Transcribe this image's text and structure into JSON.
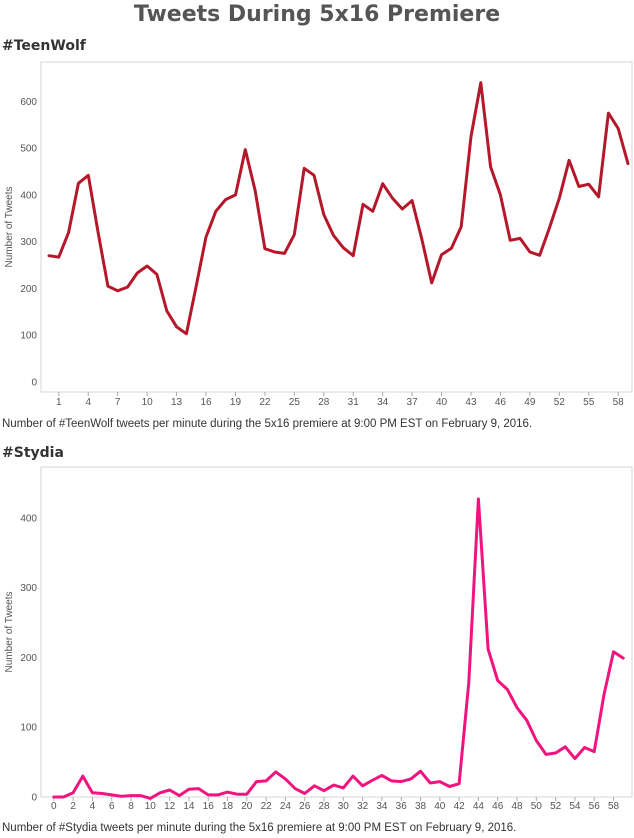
{
  "title": "Tweets During 5x16 Premiere",
  "chart_data": [
    {
      "type": "line",
      "title": "#TeenWolf",
      "caption": "Number of #TeenWolf tweets per minute during the 5x16 premiere at 9:00 PM EST on February 9, 2016.",
      "xlabel": "",
      "ylabel": "Number of Tweets",
      "color": "#b5182b",
      "xlim": [
        0,
        59
      ],
      "ylim": [
        0,
        680
      ],
      "xticks": [
        1,
        4,
        7,
        10,
        13,
        16,
        19,
        22,
        25,
        28,
        31,
        34,
        37,
        40,
        43,
        46,
        49,
        52,
        55,
        58
      ],
      "yticks": [
        0,
        100,
        200,
        300,
        400,
        500,
        600
      ],
      "x": [
        0,
        1,
        2,
        3,
        4,
        5,
        6,
        7,
        8,
        9,
        10,
        11,
        12,
        13,
        14,
        15,
        16,
        17,
        18,
        19,
        20,
        21,
        22,
        23,
        24,
        25,
        26,
        27,
        28,
        29,
        30,
        31,
        32,
        33,
        34,
        35,
        36,
        37,
        38,
        39,
        40,
        41,
        42,
        43,
        44,
        45,
        46,
        47,
        48,
        49,
        50,
        51,
        52,
        53,
        54,
        55,
        56,
        57,
        58,
        59
      ],
      "values": [
        270,
        267,
        320,
        425,
        442,
        320,
        205,
        195,
        203,
        233,
        248,
        230,
        152,
        118,
        103,
        205,
        310,
        365,
        390,
        400,
        497,
        410,
        285,
        278,
        275,
        315,
        457,
        442,
        358,
        313,
        287,
        270,
        380,
        365,
        424,
        393,
        370,
        388,
        305,
        212,
        272,
        286,
        332,
        525,
        640,
        460,
        400,
        303,
        307,
        278,
        271,
        330,
        393,
        474,
        418,
        423,
        396,
        575,
        542,
        467
      ],
      "grid": false
    },
    {
      "type": "line",
      "title": "#Stydia",
      "caption": "Number of #Stydia tweets per minute during the 5x16 premiere at 9:00 PM EST on February 9, 2016.",
      "xlabel": "",
      "ylabel": "Number of Tweets",
      "color": "#f0147e",
      "xlim": [
        -0.5,
        59.5
      ],
      "ylim": [
        0,
        470
      ],
      "xticks": [
        0,
        2,
        4,
        6,
        8,
        10,
        12,
        14,
        16,
        18,
        20,
        22,
        24,
        26,
        28,
        30,
        32,
        34,
        36,
        38,
        40,
        42,
        44,
        46,
        48,
        50,
        52,
        54,
        56,
        58
      ],
      "yticks": [
        0,
        100,
        200,
        300,
        400
      ],
      "x": [
        0,
        1,
        2,
        3,
        4,
        5,
        6,
        7,
        8,
        9,
        10,
        11,
        12,
        13,
        14,
        15,
        16,
        17,
        18,
        19,
        20,
        21,
        22,
        23,
        24,
        25,
        26,
        27,
        28,
        29,
        30,
        31,
        32,
        33,
        34,
        35,
        36,
        37,
        38,
        39,
        40,
        41,
        42,
        43,
        44,
        45,
        46,
        47,
        48,
        49,
        50,
        51,
        52,
        53,
        54,
        55,
        56,
        57,
        58,
        59
      ],
      "values": [
        0,
        0,
        6,
        30,
        6,
        5,
        3,
        1,
        2,
        2,
        -2,
        6,
        10,
        2,
        11,
        12,
        3,
        3,
        7,
        4,
        4,
        22,
        23,
        36,
        26,
        12,
        5,
        16,
        9,
        17,
        13,
        30,
        16,
        24,
        31,
        23,
        22,
        26,
        37,
        20,
        22,
        15,
        19,
        164,
        427,
        212,
        167,
        154,
        128,
        110,
        81,
        61,
        63,
        72,
        55,
        71,
        65,
        146,
        208,
        199
      ],
      "grid": false
    }
  ]
}
